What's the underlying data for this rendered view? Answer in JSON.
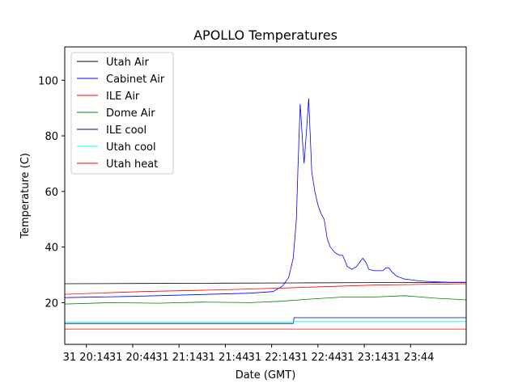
{
  "chart_data": {
    "type": "line",
    "title": "APOLLO Temperatures",
    "xlabel": "Date (GMT)",
    "ylabel": "Temperature (C)",
    "xlim": [
      0,
      260
    ],
    "ylim": [
      5,
      112
    ],
    "grid": false,
    "legend_position": "top-left",
    "x_unit": "minutes since 31 20:00 GMT",
    "xticks": [
      {
        "value": 14,
        "label": "31 20:14"
      },
      {
        "value": 44,
        "label": "31 20:44"
      },
      {
        "value": 74,
        "label": "31 21:14"
      },
      {
        "value": 104,
        "label": "31 21:44"
      },
      {
        "value": 134,
        "label": "31 22:14"
      },
      {
        "value": 164,
        "label": "31 22:44"
      },
      {
        "value": 194,
        "label": "31 23:14"
      },
      {
        "value": 224,
        "label": "31 23:44"
      }
    ],
    "yticks": [
      {
        "value": 20,
        "label": "20"
      },
      {
        "value": 40,
        "label": "40"
      },
      {
        "value": 60,
        "label": "60"
      },
      {
        "value": 80,
        "label": "80"
      },
      {
        "value": 100,
        "label": "100"
      }
    ],
    "series": [
      {
        "name": "Utah Air",
        "color": "#000000",
        "x": [
          0,
          50,
          100,
          150,
          200,
          260
        ],
        "y": [
          26.8,
          26.9,
          27.0,
          27.1,
          27.2,
          27.3
        ]
      },
      {
        "name": "Cabinet Air",
        "color": "#0000ff",
        "x": [
          0,
          40,
          80,
          120,
          135,
          141,
          145,
          148,
          150,
          151,
          152.5,
          154,
          155,
          157,
          158,
          160,
          162,
          164,
          166,
          168,
          170,
          172,
          175,
          178,
          180,
          183,
          186,
          189,
          191,
          193,
          195,
          197,
          200,
          203,
          206,
          208,
          210,
          212,
          215,
          220,
          230,
          240,
          250,
          260
        ],
        "y": [
          21.8,
          22.2,
          22.8,
          23.4,
          24.0,
          26.0,
          29.0,
          36.0,
          50.0,
          68.0,
          91.5,
          78.0,
          70.0,
          85.0,
          93.5,
          67.0,
          60.0,
          55.0,
          52.0,
          50.0,
          43.0,
          40.0,
          38.0,
          37.0,
          37.0,
          33.0,
          32.0,
          33.0,
          34.5,
          36.0,
          34.5,
          32.0,
          31.5,
          31.5,
          31.5,
          32.5,
          32.5,
          31.0,
          29.5,
          28.5,
          27.8,
          27.5,
          27.3,
          27.3
        ]
      },
      {
        "name": "ILE Air",
        "color": "#ff0000",
        "x": [
          0,
          50,
          100,
          150,
          200,
          260
        ],
        "y": [
          23.0,
          24.0,
          24.6,
          25.4,
          26.3,
          26.8
        ]
      },
      {
        "name": "Dome Air",
        "color": "#008000",
        "x": [
          0,
          30,
          60,
          90,
          120,
          140,
          160,
          180,
          200,
          220,
          240,
          260
        ],
        "y": [
          19.5,
          20.0,
          19.8,
          20.2,
          20.0,
          20.5,
          21.3,
          22.0,
          22.0,
          22.5,
          21.6,
          21.0
        ]
      },
      {
        "name": "ILE cool",
        "color": "#00008b",
        "x": [
          0,
          148,
          148.5,
          260
        ],
        "y": [
          12.5,
          12.5,
          14.6,
          14.6
        ]
      },
      {
        "name": "Utah cool",
        "color": "#00ffff",
        "x": [
          0,
          148,
          148.5,
          260
        ],
        "y": [
          13.0,
          13.0,
          13.2,
          13.2
        ]
      },
      {
        "name": "Utah heat",
        "color": "#ff0000",
        "x": [
          0,
          260
        ],
        "y": [
          10.5,
          10.5
        ]
      }
    ]
  }
}
